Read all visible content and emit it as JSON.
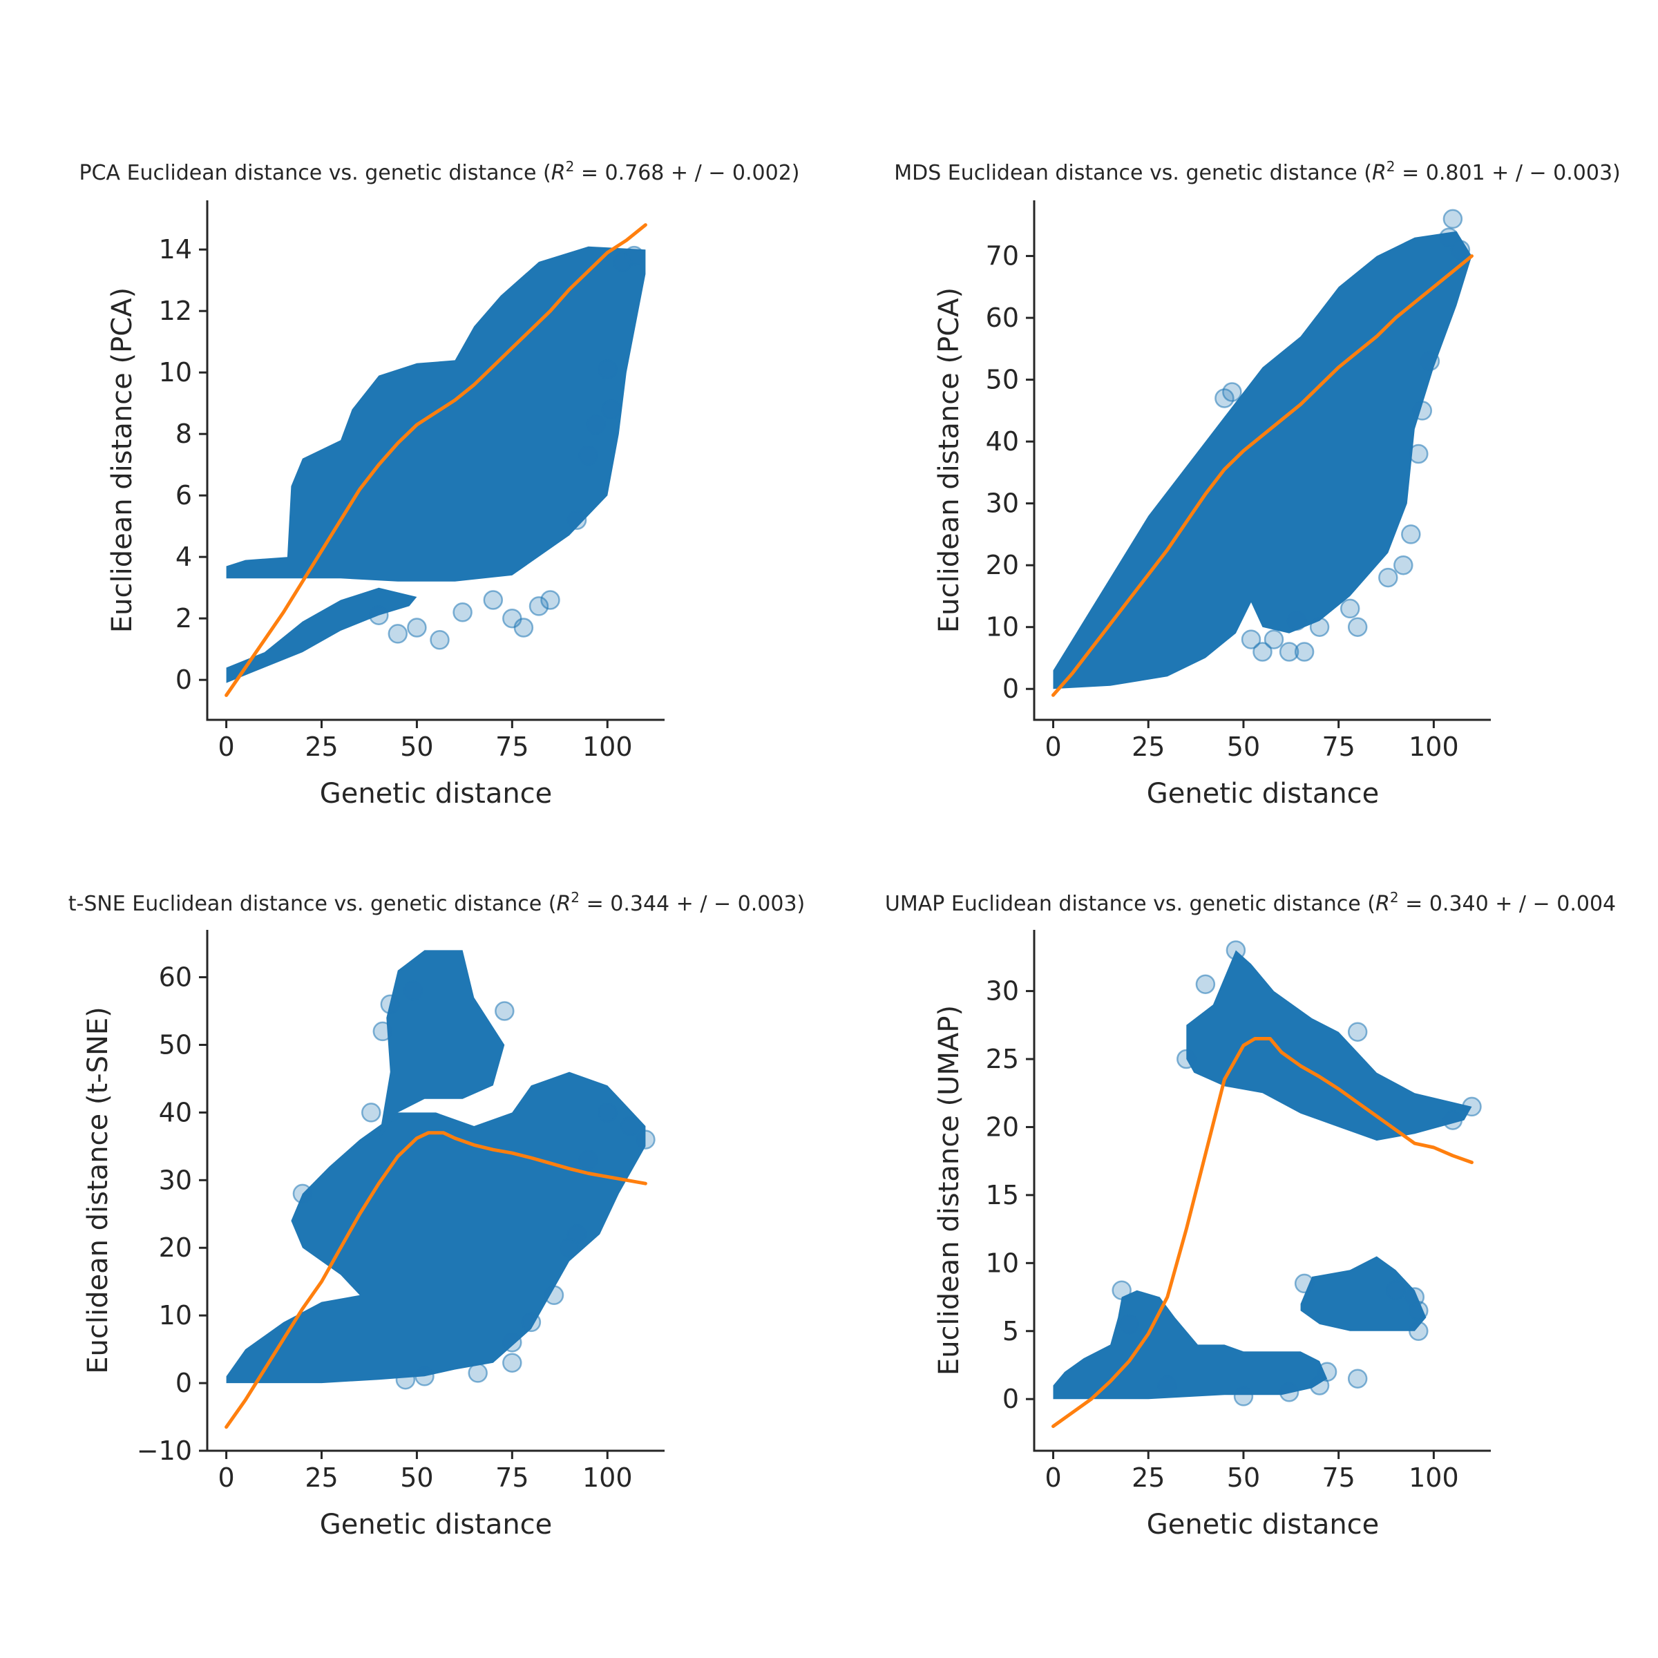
{
  "figure": {
    "colors": {
      "points": "#1f77b4",
      "fit": "#ff7f0e",
      "axes": "#262626"
    }
  },
  "chart_data": [
    {
      "type": "scatter",
      "title": "PCA Euclidean distance vs. genetic distance (R² = 0.768 +/ − 0.002)",
      "title_prefix": "PCA Euclidean distance vs. genetic distance (",
      "r2_text": " = 0.768 + / − 0.002)",
      "xlabel": "Genetic distance",
      "ylabel": "Euclidean distance (PCA)",
      "xlim": [
        -5,
        115
      ],
      "ylim": [
        -1.3,
        15.6
      ],
      "xticks": [
        0,
        25,
        50,
        75,
        100
      ],
      "yticks": [
        0,
        2,
        4,
        6,
        8,
        10,
        12,
        14
      ],
      "grid": false,
      "clouds": [
        [
          [
            0,
            -0.1
          ],
          [
            8,
            0.3
          ],
          [
            20,
            0.9
          ],
          [
            30,
            1.6
          ],
          [
            40,
            2.1
          ],
          [
            48,
            2.4
          ],
          [
            50,
            2.7
          ],
          [
            40,
            3.0
          ],
          [
            30,
            2.6
          ],
          [
            20,
            1.9
          ],
          [
            10,
            0.9
          ],
          [
            0,
            0.4
          ]
        ],
        [
          [
            0,
            3.3
          ],
          [
            15,
            3.3
          ],
          [
            30,
            3.3
          ],
          [
            45,
            3.2
          ],
          [
            60,
            3.2
          ],
          [
            75,
            3.4
          ],
          [
            90,
            4.7
          ],
          [
            100,
            6.0
          ],
          [
            103,
            8.0
          ],
          [
            105,
            10.0
          ],
          [
            110,
            13.2
          ],
          [
            110,
            14.0
          ],
          [
            95,
            14.1
          ],
          [
            82,
            13.6
          ],
          [
            72,
            12.5
          ],
          [
            65,
            11.5
          ],
          [
            60,
            10.4
          ],
          [
            50,
            10.3
          ],
          [
            40,
            9.9
          ],
          [
            33,
            8.8
          ],
          [
            30,
            7.8
          ],
          [
            20,
            7.2
          ],
          [
            17,
            6.3
          ],
          [
            16,
            4.0
          ],
          [
            5,
            3.9
          ],
          [
            0,
            3.7
          ]
        ]
      ],
      "outliers": [
        [
          40,
          2.1
        ],
        [
          45,
          1.5
        ],
        [
          50,
          1.7
        ],
        [
          56,
          1.3
        ],
        [
          62,
          2.2
        ],
        [
          70,
          2.6
        ],
        [
          75,
          2.0
        ],
        [
          78,
          1.7
        ],
        [
          82,
          2.4
        ],
        [
          85,
          2.6
        ],
        [
          92,
          5.2
        ],
        [
          95,
          7.3
        ],
        [
          97,
          8.3
        ],
        [
          100,
          10.1
        ],
        [
          101,
          8.8
        ],
        [
          104,
          13.6
        ],
        [
          107,
          13.8
        ]
      ],
      "series": [
        {
          "name": "LOWESS fit",
          "x": [
            0,
            5,
            10,
            15,
            20,
            25,
            30,
            35,
            40,
            45,
            50,
            55,
            60,
            65,
            70,
            75,
            80,
            85,
            90,
            95,
            100,
            105,
            110
          ],
          "y": [
            -0.5,
            0.4,
            1.3,
            2.2,
            3.2,
            4.2,
            5.2,
            6.2,
            7.0,
            7.7,
            8.3,
            8.7,
            9.1,
            9.6,
            10.2,
            10.8,
            11.4,
            12.0,
            12.7,
            13.3,
            13.9,
            14.3,
            14.8
          ]
        }
      ]
    },
    {
      "type": "scatter",
      "title": "MDS Euclidean distance vs. genetic distance (R² = 0.801 +/ − 0.003)",
      "title_prefix": "MDS Euclidean distance vs. genetic distance (",
      "r2_text": " = 0.801 + / − 0.003)",
      "xlabel": "Genetic distance",
      "ylabel": "Euclidean distance (PCA)",
      "xlim": [
        -5,
        115
      ],
      "ylim": [
        -5,
        79
      ],
      "xticks": [
        0,
        25,
        50,
        75,
        100
      ],
      "yticks": [
        0,
        10,
        20,
        30,
        40,
        50,
        60,
        70
      ],
      "grid": false,
      "clouds": [
        [
          [
            0,
            0
          ],
          [
            15,
            0.5
          ],
          [
            30,
            2
          ],
          [
            40,
            5
          ],
          [
            48,
            9
          ],
          [
            52,
            14
          ],
          [
            55,
            10
          ],
          [
            62,
            9
          ],
          [
            70,
            11
          ],
          [
            78,
            15
          ],
          [
            88,
            22
          ],
          [
            93,
            30
          ],
          [
            95,
            42
          ],
          [
            100,
            52
          ],
          [
            106,
            62
          ],
          [
            110,
            70
          ],
          [
            106,
            74
          ],
          [
            95,
            73
          ],
          [
            85,
            70
          ],
          [
            75,
            65
          ],
          [
            65,
            57
          ],
          [
            55,
            52
          ],
          [
            45,
            44
          ],
          [
            35,
            36
          ],
          [
            25,
            28
          ],
          [
            15,
            18
          ],
          [
            5,
            8
          ],
          [
            0,
            3
          ]
        ]
      ],
      "outliers": [
        [
          45,
          47
        ],
        [
          47,
          48
        ],
        [
          52,
          8
        ],
        [
          55,
          6
        ],
        [
          58,
          8
        ],
        [
          62,
          6
        ],
        [
          64,
          11
        ],
        [
          66,
          6
        ],
        [
          70,
          10
        ],
        [
          78,
          13
        ],
        [
          80,
          10
        ],
        [
          88,
          18
        ],
        [
          92,
          20
        ],
        [
          94,
          25
        ],
        [
          96,
          38
        ],
        [
          97,
          45
        ],
        [
          99,
          53
        ],
        [
          104,
          73
        ],
        [
          105,
          76
        ],
        [
          107,
          71
        ]
      ],
      "series": [
        {
          "name": "LOWESS fit",
          "x": [
            0,
            5,
            10,
            15,
            20,
            25,
            30,
            35,
            40,
            45,
            50,
            55,
            60,
            65,
            70,
            75,
            80,
            85,
            90,
            95,
            100,
            105,
            110
          ],
          "y": [
            -1,
            2.5,
            6.5,
            10.5,
            14.5,
            18.5,
            22.5,
            27,
            31.5,
            35.5,
            38.5,
            41,
            43.5,
            46,
            49,
            52,
            54.5,
            57,
            60,
            62.5,
            65,
            67.5,
            70
          ]
        }
      ]
    },
    {
      "type": "scatter",
      "title": "t-SNE Euclidean distance vs. genetic distance (R² = 0.344 +/ − 0.003)",
      "title_prefix": "t-SNE Euclidean distance vs. genetic distance (",
      "r2_text": " = 0.344 + / − 0.003)",
      "xlabel": "Genetic distance",
      "ylabel": "Euclidean distance (t-SNE)",
      "xlim": [
        -5,
        115
      ],
      "ylim": [
        -10,
        67
      ],
      "xticks": [
        0,
        25,
        50,
        75,
        100
      ],
      "yticks": [
        -10,
        0,
        10,
        20,
        30,
        40,
        50,
        60
      ],
      "grid": false,
      "clouds": [
        [
          [
            0,
            0
          ],
          [
            10,
            0
          ],
          [
            25,
            0
          ],
          [
            40,
            0.5
          ],
          [
            52,
            1
          ],
          [
            60,
            2
          ],
          [
            70,
            3
          ],
          [
            80,
            8
          ],
          [
            86,
            14
          ],
          [
            90,
            18
          ],
          [
            98,
            22
          ],
          [
            103,
            28
          ],
          [
            110,
            35
          ],
          [
            110,
            38
          ],
          [
            100,
            44
          ],
          [
            90,
            46
          ],
          [
            80,
            44
          ],
          [
            75,
            40
          ],
          [
            65,
            38
          ],
          [
            55,
            40
          ],
          [
            45,
            40
          ],
          [
            35,
            36
          ],
          [
            27,
            32
          ],
          [
            20,
            28
          ],
          [
            17,
            24
          ],
          [
            20,
            20
          ],
          [
            30,
            16
          ],
          [
            35,
            13
          ],
          [
            25,
            12
          ],
          [
            15,
            9
          ],
          [
            5,
            5
          ],
          [
            0,
            1
          ]
        ],
        [
          [
            40,
            36
          ],
          [
            43,
            46
          ],
          [
            42,
            54
          ],
          [
            45,
            61
          ],
          [
            52,
            64
          ],
          [
            62,
            64
          ],
          [
            65,
            57
          ],
          [
            73,
            50
          ],
          [
            70,
            44
          ],
          [
            62,
            42
          ],
          [
            52,
            42
          ],
          [
            45,
            40
          ]
        ]
      ],
      "outliers": [
        [
          47,
          0.5
        ],
        [
          52,
          1
        ],
        [
          66,
          1.5
        ],
        [
          75,
          3
        ],
        [
          75,
          6
        ],
        [
          80,
          9
        ],
        [
          86,
          13
        ],
        [
          90,
          20
        ],
        [
          92,
          22
        ],
        [
          95,
          33
        ],
        [
          100,
          40
        ],
        [
          106,
          38
        ],
        [
          110,
          36
        ],
        [
          41,
          52
        ],
        [
          43,
          56
        ],
        [
          49,
          58
        ],
        [
          73,
          55
        ],
        [
          38,
          40
        ],
        [
          20,
          28
        ]
      ],
      "series": [
        {
          "name": "LOWESS fit",
          "x": [
            0,
            5,
            10,
            15,
            20,
            25,
            30,
            35,
            40,
            45,
            50,
            53,
            57,
            60,
            65,
            70,
            75,
            80,
            85,
            90,
            95,
            100,
            105,
            110
          ],
          "y": [
            -6.5,
            -2.5,
            2,
            6.5,
            11,
            15,
            20,
            25,
            29.5,
            33.5,
            36.2,
            37,
            37,
            36.2,
            35.2,
            34.5,
            34,
            33.3,
            32.5,
            31.7,
            31,
            30.5,
            30,
            29.5
          ]
        }
      ]
    },
    {
      "type": "scatter",
      "title": "UMAP Euclidean distance vs. genetic distance (R² = 0.340 +/ − 0.004)",
      "title_prefix": "UMAP Euclidean distance vs. genetic distance (",
      "r2_text": " = 0.340 + / − 0.004",
      "xlabel": "Genetic distance",
      "ylabel": "Euclidean distance (UMAP)",
      "xlim": [
        -5,
        115
      ],
      "ylim": [
        -3.8,
        34.5
      ],
      "xticks": [
        0,
        25,
        50,
        75,
        100
      ],
      "yticks": [
        0,
        5,
        10,
        15,
        20,
        25,
        30
      ],
      "grid": false,
      "clouds": [
        [
          [
            0,
            0
          ],
          [
            10,
            0
          ],
          [
            25,
            0
          ],
          [
            45,
            0.3
          ],
          [
            60,
            0.3
          ],
          [
            68,
            0.8
          ],
          [
            72,
            1.5
          ],
          [
            70,
            2.8
          ],
          [
            65,
            3.5
          ],
          [
            57,
            3.5
          ],
          [
            50,
            3.5
          ],
          [
            45,
            4.0
          ],
          [
            38,
            4.0
          ],
          [
            32,
            6.0
          ],
          [
            28,
            7.5
          ],
          [
            22,
            8.0
          ],
          [
            18,
            7.5
          ],
          [
            17,
            6.0
          ],
          [
            15,
            4.0
          ],
          [
            8,
            3.0
          ],
          [
            3,
            2.0
          ],
          [
            0,
            1.0
          ]
        ],
        [
          [
            65,
            7
          ],
          [
            68,
            9
          ],
          [
            78,
            9.5
          ],
          [
            85,
            10.5
          ],
          [
            90,
            9.5
          ],
          [
            95,
            8.0
          ],
          [
            98,
            6.0
          ],
          [
            95,
            5.0
          ],
          [
            85,
            5.0
          ],
          [
            78,
            5.0
          ],
          [
            70,
            5.5
          ],
          [
            65,
            6.5
          ]
        ],
        [
          [
            35,
            25
          ],
          [
            35,
            27.5
          ],
          [
            42,
            29
          ],
          [
            48,
            33
          ],
          [
            52,
            32
          ],
          [
            58,
            30
          ],
          [
            68,
            28
          ],
          [
            75,
            27
          ],
          [
            85,
            24
          ],
          [
            95,
            22.5
          ],
          [
            110,
            21.5
          ],
          [
            108,
            20.5
          ],
          [
            95,
            19.5
          ],
          [
            85,
            19
          ],
          [
            75,
            20
          ],
          [
            65,
            21
          ],
          [
            55,
            22.5
          ],
          [
            45,
            23
          ],
          [
            37,
            24
          ]
        ]
      ],
      "outliers": [
        [
          18,
          8.0
        ],
        [
          20,
          5.5
        ],
        [
          30,
          1.0
        ],
        [
          50,
          0.2
        ],
        [
          62,
          0.5
        ],
        [
          70,
          1.0
        ],
        [
          72,
          2.0
        ],
        [
          80,
          1.5
        ],
        [
          66,
          8.5
        ],
        [
          90,
          8.0
        ],
        [
          95,
          7.5
        ],
        [
          96,
          5.0
        ],
        [
          96,
          6.5
        ],
        [
          40,
          30.5
        ],
        [
          48,
          33
        ],
        [
          80,
          27
        ],
        [
          110,
          21.5
        ],
        [
          105,
          20.5
        ],
        [
          35,
          25
        ]
      ],
      "series": [
        {
          "name": "LOWESS fit",
          "x": [
            0,
            5,
            10,
            15,
            20,
            25,
            30,
            35,
            40,
            45,
            50,
            53,
            57,
            60,
            65,
            70,
            75,
            80,
            85,
            90,
            95,
            100,
            105,
            110
          ],
          "y": [
            -2,
            -1,
            0,
            1.3,
            2.8,
            4.8,
            7.5,
            12.5,
            18,
            23.5,
            26,
            26.5,
            26.5,
            25.5,
            24.5,
            23.7,
            22.8,
            21.8,
            20.8,
            19.8,
            18.8,
            18.5,
            17.9,
            17.4
          ]
        }
      ]
    }
  ]
}
